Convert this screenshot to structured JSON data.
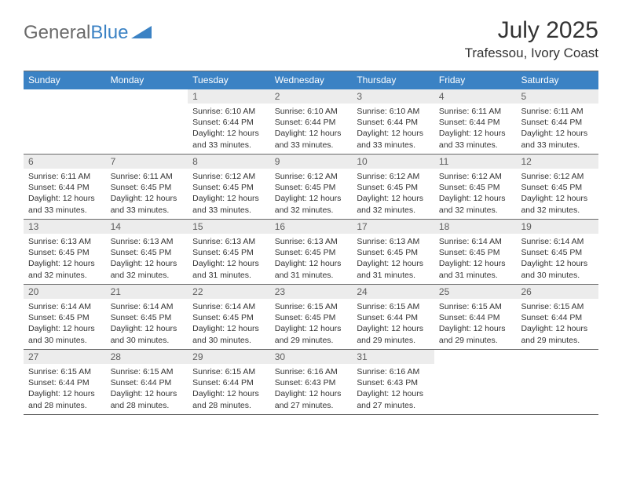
{
  "logo": {
    "text1": "General",
    "text2": "Blue"
  },
  "header": {
    "title": "July 2025",
    "location": "Trafessou, Ivory Coast"
  },
  "colors": {
    "accent": "#3b82c4",
    "header_rule": "#6a6a6a",
    "daynum_bg": "#ececec",
    "text": "#333333",
    "logo_gray": "#6a6a6a"
  },
  "days_of_week": [
    "Sunday",
    "Monday",
    "Tuesday",
    "Wednesday",
    "Thursday",
    "Friday",
    "Saturday"
  ],
  "calendar": {
    "leading_blanks": 2,
    "cells": [
      {
        "n": 1,
        "sr": "6:10 AM",
        "ss": "6:44 PM",
        "dl": "12 hours and 33 minutes."
      },
      {
        "n": 2,
        "sr": "6:10 AM",
        "ss": "6:44 PM",
        "dl": "12 hours and 33 minutes."
      },
      {
        "n": 3,
        "sr": "6:10 AM",
        "ss": "6:44 PM",
        "dl": "12 hours and 33 minutes."
      },
      {
        "n": 4,
        "sr": "6:11 AM",
        "ss": "6:44 PM",
        "dl": "12 hours and 33 minutes."
      },
      {
        "n": 5,
        "sr": "6:11 AM",
        "ss": "6:44 PM",
        "dl": "12 hours and 33 minutes."
      },
      {
        "n": 6,
        "sr": "6:11 AM",
        "ss": "6:44 PM",
        "dl": "12 hours and 33 minutes."
      },
      {
        "n": 7,
        "sr": "6:11 AM",
        "ss": "6:45 PM",
        "dl": "12 hours and 33 minutes."
      },
      {
        "n": 8,
        "sr": "6:12 AM",
        "ss": "6:45 PM",
        "dl": "12 hours and 33 minutes."
      },
      {
        "n": 9,
        "sr": "6:12 AM",
        "ss": "6:45 PM",
        "dl": "12 hours and 32 minutes."
      },
      {
        "n": 10,
        "sr": "6:12 AM",
        "ss": "6:45 PM",
        "dl": "12 hours and 32 minutes."
      },
      {
        "n": 11,
        "sr": "6:12 AM",
        "ss": "6:45 PM",
        "dl": "12 hours and 32 minutes."
      },
      {
        "n": 12,
        "sr": "6:12 AM",
        "ss": "6:45 PM",
        "dl": "12 hours and 32 minutes."
      },
      {
        "n": 13,
        "sr": "6:13 AM",
        "ss": "6:45 PM",
        "dl": "12 hours and 32 minutes."
      },
      {
        "n": 14,
        "sr": "6:13 AM",
        "ss": "6:45 PM",
        "dl": "12 hours and 32 minutes."
      },
      {
        "n": 15,
        "sr": "6:13 AM",
        "ss": "6:45 PM",
        "dl": "12 hours and 31 minutes."
      },
      {
        "n": 16,
        "sr": "6:13 AM",
        "ss": "6:45 PM",
        "dl": "12 hours and 31 minutes."
      },
      {
        "n": 17,
        "sr": "6:13 AM",
        "ss": "6:45 PM",
        "dl": "12 hours and 31 minutes."
      },
      {
        "n": 18,
        "sr": "6:14 AM",
        "ss": "6:45 PM",
        "dl": "12 hours and 31 minutes."
      },
      {
        "n": 19,
        "sr": "6:14 AM",
        "ss": "6:45 PM",
        "dl": "12 hours and 30 minutes."
      },
      {
        "n": 20,
        "sr": "6:14 AM",
        "ss": "6:45 PM",
        "dl": "12 hours and 30 minutes."
      },
      {
        "n": 21,
        "sr": "6:14 AM",
        "ss": "6:45 PM",
        "dl": "12 hours and 30 minutes."
      },
      {
        "n": 22,
        "sr": "6:14 AM",
        "ss": "6:45 PM",
        "dl": "12 hours and 30 minutes."
      },
      {
        "n": 23,
        "sr": "6:15 AM",
        "ss": "6:45 PM",
        "dl": "12 hours and 29 minutes."
      },
      {
        "n": 24,
        "sr": "6:15 AM",
        "ss": "6:44 PM",
        "dl": "12 hours and 29 minutes."
      },
      {
        "n": 25,
        "sr": "6:15 AM",
        "ss": "6:44 PM",
        "dl": "12 hours and 29 minutes."
      },
      {
        "n": 26,
        "sr": "6:15 AM",
        "ss": "6:44 PM",
        "dl": "12 hours and 29 minutes."
      },
      {
        "n": 27,
        "sr": "6:15 AM",
        "ss": "6:44 PM",
        "dl": "12 hours and 28 minutes."
      },
      {
        "n": 28,
        "sr": "6:15 AM",
        "ss": "6:44 PM",
        "dl": "12 hours and 28 minutes."
      },
      {
        "n": 29,
        "sr": "6:15 AM",
        "ss": "6:44 PM",
        "dl": "12 hours and 28 minutes."
      },
      {
        "n": 30,
        "sr": "6:16 AM",
        "ss": "6:43 PM",
        "dl": "12 hours and 27 minutes."
      },
      {
        "n": 31,
        "sr": "6:16 AM",
        "ss": "6:43 PM",
        "dl": "12 hours and 27 minutes."
      }
    ]
  },
  "labels": {
    "sunrise_prefix": "Sunrise: ",
    "sunset_prefix": "Sunset: ",
    "daylight_prefix": "Daylight: "
  }
}
